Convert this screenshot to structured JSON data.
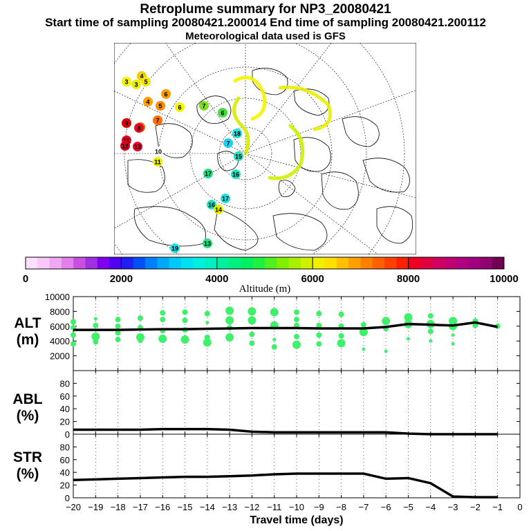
{
  "header": {
    "title": "Retroplume summary for NP3_20080421",
    "sampling": "Start time of sampling 20080421.200014     End time of sampling 20080421.200112",
    "met": "Meteorological data used is GFS"
  },
  "map": {
    "projection": "north-polar-stereographic",
    "markers": [
      {
        "label": "3",
        "color": "#f4f400"
      },
      {
        "label": "3",
        "color": "#e8f000"
      },
      {
        "label": "4",
        "color": "#f0d000"
      },
      {
        "label": "5",
        "color": "#f4e800"
      },
      {
        "label": "4",
        "color": "#ffa000"
      },
      {
        "label": "5",
        "color": "#ff8c00"
      },
      {
        "label": "6",
        "color": "#ff9a00"
      },
      {
        "label": "6",
        "color": "#f4f400"
      },
      {
        "label": "7",
        "color": "#80e020"
      },
      {
        "label": "6",
        "color": "#40e040"
      },
      {
        "label": "7",
        "color": "#ff7000"
      },
      {
        "label": "8",
        "color": "#ff6000"
      },
      {
        "label": "9",
        "color": "#e00000"
      },
      {
        "label": "8",
        "color": "#e01020"
      },
      {
        "label": "11",
        "color": "#e00020"
      },
      {
        "label": "12",
        "color": "#e00020"
      },
      {
        "label": "13",
        "color": "#f00030"
      },
      {
        "label": "10",
        "color": "#ffffff"
      },
      {
        "label": "11",
        "color": "#e8f000"
      },
      {
        "label": "7",
        "color": "#20d0f0"
      },
      {
        "label": "18",
        "color": "#20e0e0"
      },
      {
        "label": "15",
        "color": "#20e0c0"
      },
      {
        "label": "16",
        "color": "#20e0c0"
      },
      {
        "label": "17",
        "color": "#20e0e0"
      },
      {
        "label": "18",
        "color": "#ffa000"
      },
      {
        "label": "17",
        "color": "#ffa000"
      },
      {
        "label": "19",
        "color": "#c0e000"
      },
      {
        "label": "18",
        "color": "#40e040"
      },
      {
        "label": "17",
        "color": "#20e080"
      },
      {
        "label": "16",
        "color": "#20e0c0"
      },
      {
        "label": "13",
        "color": "#20e080"
      },
      {
        "label": "19",
        "color": "#20e0e0"
      },
      {
        "label": "14",
        "color": "#e8f000"
      }
    ]
  },
  "colorbar": {
    "axis_label": "Altitude (m)",
    "tick_labels": [
      "0",
      "2000",
      "4000",
      "6000",
      "8000",
      "10000"
    ],
    "colors": [
      "#fde0fd",
      "#f8c8f8",
      "#f0a8f0",
      "#e080e8",
      "#c850e0",
      "#a030e0",
      "#8000f0",
      "#5000f0",
      "#2020f0",
      "#0050f8",
      "#0080f8",
      "#00a8f8",
      "#00c8f8",
      "#00e0f0",
      "#00f0e0",
      "#00f0c0",
      "#00f0a0",
      "#00f080",
      "#00f060",
      "#20f040",
      "#50f020",
      "#80f000",
      "#a8f000",
      "#d0f000",
      "#f0f000",
      "#ffe000",
      "#ffc000",
      "#ffa000",
      "#ff8000",
      "#ff6000",
      "#ff4000",
      "#ff2000",
      "#f00020",
      "#e00040",
      "#d00060",
      "#c00070",
      "#b00080",
      "#a00080",
      "#900070",
      "#700050"
    ]
  },
  "chart_data": [
    {
      "type": "scatter",
      "panel": "ALT",
      "ylabel": "ALT\n(m)",
      "ylabel_line1": "ALT",
      "ylabel_line2": "(m)",
      "ylim": [
        0,
        10000
      ],
      "yticks": [
        2000,
        4000,
        6000,
        8000,
        10000
      ],
      "ytick_labels": [
        "2000",
        "4000",
        "6000",
        "8000",
        "10000"
      ],
      "xlim": [
        -20,
        0
      ],
      "point_color": "#3ef06a",
      "line_color": "#000000",
      "line": {
        "x": [
          -20,
          -19,
          -18,
          -17,
          -16,
          -15,
          -14,
          -13,
          -12,
          -11,
          -10,
          -9,
          -8,
          -7,
          -6,
          -5,
          -4,
          -3,
          -2,
          -1
        ],
        "y": [
          5500,
          5500,
          5500,
          5550,
          5600,
          5600,
          5650,
          5700,
          5750,
          5750,
          5750,
          5700,
          5700,
          5700,
          5900,
          6300,
          6200,
          6100,
          6500,
          5900
        ]
      },
      "points": [
        {
          "x": -20,
          "y": 6600,
          "s": 2
        },
        {
          "x": -20,
          "y": 5800,
          "s": 2
        },
        {
          "x": -20,
          "y": 4800,
          "s": 2
        },
        {
          "x": -20,
          "y": 3600,
          "s": 2
        },
        {
          "x": -19,
          "y": 7000,
          "s": 1
        },
        {
          "x": -19,
          "y": 6100,
          "s": 2
        },
        {
          "x": -19,
          "y": 4600,
          "s": 3
        },
        {
          "x": -19,
          "y": 3900,
          "s": 2
        },
        {
          "x": -18,
          "y": 6900,
          "s": 2
        },
        {
          "x": -18,
          "y": 6000,
          "s": 2
        },
        {
          "x": -18,
          "y": 5100,
          "s": 2
        },
        {
          "x": -18,
          "y": 4200,
          "s": 2
        },
        {
          "x": -17,
          "y": 7100,
          "s": 2
        },
        {
          "x": -17,
          "y": 5800,
          "s": 2
        },
        {
          "x": -17,
          "y": 4500,
          "s": 3
        },
        {
          "x": -17,
          "y": 4100,
          "s": 2
        },
        {
          "x": -16,
          "y": 7800,
          "s": 2
        },
        {
          "x": -16,
          "y": 6900,
          "s": 2
        },
        {
          "x": -16,
          "y": 5400,
          "s": 2
        },
        {
          "x": -16,
          "y": 4300,
          "s": 3
        },
        {
          "x": -15,
          "y": 7900,
          "s": 2
        },
        {
          "x": -15,
          "y": 6800,
          "s": 2
        },
        {
          "x": -15,
          "y": 5500,
          "s": 2
        },
        {
          "x": -15,
          "y": 4200,
          "s": 3
        },
        {
          "x": -14,
          "y": 7700,
          "s": 2
        },
        {
          "x": -14,
          "y": 6500,
          "s": 1
        },
        {
          "x": -14,
          "y": 4500,
          "s": 2
        },
        {
          "x": -14,
          "y": 3800,
          "s": 3
        },
        {
          "x": -13,
          "y": 8100,
          "s": 3
        },
        {
          "x": -13,
          "y": 6800,
          "s": 3
        },
        {
          "x": -13,
          "y": 5800,
          "s": 2
        },
        {
          "x": -13,
          "y": 4500,
          "s": 3
        },
        {
          "x": -12,
          "y": 8000,
          "s": 3
        },
        {
          "x": -12,
          "y": 6800,
          "s": 3
        },
        {
          "x": -12,
          "y": 4900,
          "s": 2
        },
        {
          "x": -12,
          "y": 3700,
          "s": 2
        },
        {
          "x": -11,
          "y": 7900,
          "s": 3
        },
        {
          "x": -11,
          "y": 6100,
          "s": 3
        },
        {
          "x": -11,
          "y": 4200,
          "s": 1
        },
        {
          "x": -11,
          "y": 3200,
          "s": 2
        },
        {
          "x": -10,
          "y": 7900,
          "s": 2
        },
        {
          "x": -10,
          "y": 6900,
          "s": 2
        },
        {
          "x": -10,
          "y": 6100,
          "s": 2
        },
        {
          "x": -10,
          "y": 4600,
          "s": 2
        },
        {
          "x": -10,
          "y": 3500,
          "s": 3
        },
        {
          "x": -9,
          "y": 7700,
          "s": 2
        },
        {
          "x": -9,
          "y": 6100,
          "s": 2
        },
        {
          "x": -9,
          "y": 4800,
          "s": 2
        },
        {
          "x": -9,
          "y": 3600,
          "s": 2
        },
        {
          "x": -8,
          "y": 7600,
          "s": 2
        },
        {
          "x": -8,
          "y": 6000,
          "s": 2
        },
        {
          "x": -8,
          "y": 4700,
          "s": 2
        },
        {
          "x": -8,
          "y": 3700,
          "s": 3
        },
        {
          "x": -7,
          "y": 6200,
          "s": 2
        },
        {
          "x": -7,
          "y": 5200,
          "s": 3
        },
        {
          "x": -7,
          "y": 2900,
          "s": 1
        },
        {
          "x": -6,
          "y": 6700,
          "s": 3
        },
        {
          "x": -6,
          "y": 5700,
          "s": 2
        },
        {
          "x": -6,
          "y": 2600,
          "s": 1
        },
        {
          "x": -5,
          "y": 7200,
          "s": 3
        },
        {
          "x": -5,
          "y": 6300,
          "s": 3
        },
        {
          "x": -5,
          "y": 4300,
          "s": 1
        },
        {
          "x": -4,
          "y": 7400,
          "s": 2
        },
        {
          "x": -4,
          "y": 6300,
          "s": 3
        },
        {
          "x": -4,
          "y": 5300,
          "s": 2
        },
        {
          "x": -4,
          "y": 4000,
          "s": 1
        },
        {
          "x": -3,
          "y": 6700,
          "s": 3
        },
        {
          "x": -3,
          "y": 6000,
          "s": 3
        },
        {
          "x": -3,
          "y": 4800,
          "s": 1
        },
        {
          "x": -3,
          "y": 3600,
          "s": 1
        },
        {
          "x": -2,
          "y": 6700,
          "s": 2
        },
        {
          "x": -2,
          "y": 6100,
          "s": 2
        },
        {
          "x": -1,
          "y": 6000,
          "s": 2
        }
      ]
    },
    {
      "type": "line",
      "panel": "ABL",
      "ylabel_line1": "ABL",
      "ylabel_line2": "(%)",
      "ylim": [
        0,
        100
      ],
      "yticks": [
        0,
        20,
        40,
        60,
        80
      ],
      "ytick_labels": [
        "0",
        "20",
        "40",
        "60",
        "80"
      ],
      "xlim": [
        -20,
        0
      ],
      "x": [
        -20,
        -19,
        -18,
        -17,
        -16,
        -15,
        -14,
        -13,
        -12,
        -11,
        -10,
        -9,
        -8,
        -7,
        -6,
        -5,
        -4,
        -3,
        -2,
        -1
      ],
      "y": [
        7,
        7,
        7,
        7,
        8,
        8,
        8,
        7,
        4,
        3,
        3,
        3,
        3,
        3,
        3,
        1,
        0,
        0,
        0,
        0
      ]
    },
    {
      "type": "line",
      "panel": "STR",
      "ylabel_line1": "STR",
      "ylabel_line2": "(%)",
      "xlabel": "Travel time (days)",
      "ylim": [
        0,
        100
      ],
      "yticks": [
        0,
        20,
        40,
        60,
        80
      ],
      "ytick_labels": [
        "0",
        "20",
        "40",
        "60",
        "80"
      ],
      "xlim": [
        -20,
        0
      ],
      "xticks": [
        -20,
        -19,
        -18,
        -17,
        -16,
        -15,
        -14,
        -13,
        -12,
        -11,
        -10,
        -9,
        -8,
        -7,
        -6,
        -5,
        -4,
        -3,
        -2,
        -1,
        0
      ],
      "xtick_labels": [
        "−20",
        "−19",
        "−18",
        "−17",
        "−16",
        "−15",
        "−14",
        "−13",
        "−12",
        "−11",
        "−10",
        "−9",
        "−8",
        "−7",
        "−6",
        "−5",
        "−4",
        "−3",
        "−2",
        "−1",
        "0"
      ],
      "x": [
        -20,
        -19,
        -18,
        -17,
        -16,
        -15,
        -14,
        -13,
        -12,
        -11,
        -10,
        -9,
        -8,
        -7,
        -6,
        -5,
        -4,
        -3,
        -2,
        -1
      ],
      "y": [
        28,
        29,
        30,
        31,
        32,
        33,
        33,
        34,
        35,
        37,
        38,
        38,
        38,
        38,
        30,
        31,
        23,
        2,
        1,
        1
      ]
    }
  ]
}
